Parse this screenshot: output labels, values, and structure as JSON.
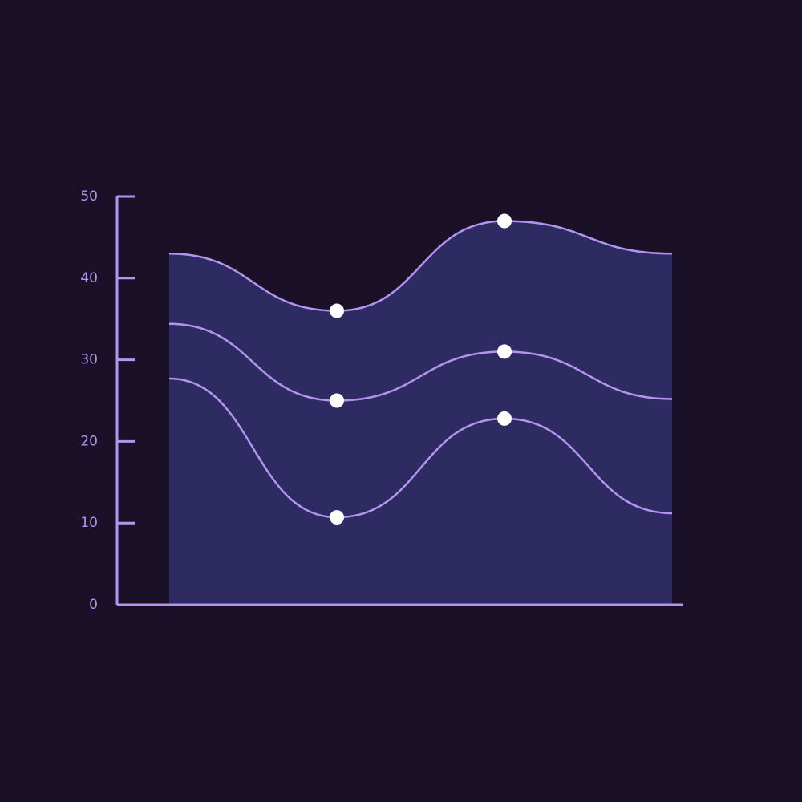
{
  "chart_data": {
    "type": "area-line",
    "categories": [
      null,
      null,
      null,
      null
    ],
    "series": [
      {
        "color": "#b593f0",
        "values": [
          43,
          36,
          47,
          43
        ]
      },
      {
        "color": "#b593f0",
        "values": [
          34.4,
          25,
          31,
          25.2
        ]
      },
      {
        "color": "#b593f0",
        "values": [
          27.7,
          10.7,
          22.8,
          11.2
        ]
      }
    ],
    "area_color": "#2e2b62",
    "axis_color": "#b593f0",
    "marker_color": "#ffffff",
    "ylim": [
      0,
      50
    ],
    "yticks": [
      0,
      10,
      20,
      30,
      40,
      50
    ]
  }
}
